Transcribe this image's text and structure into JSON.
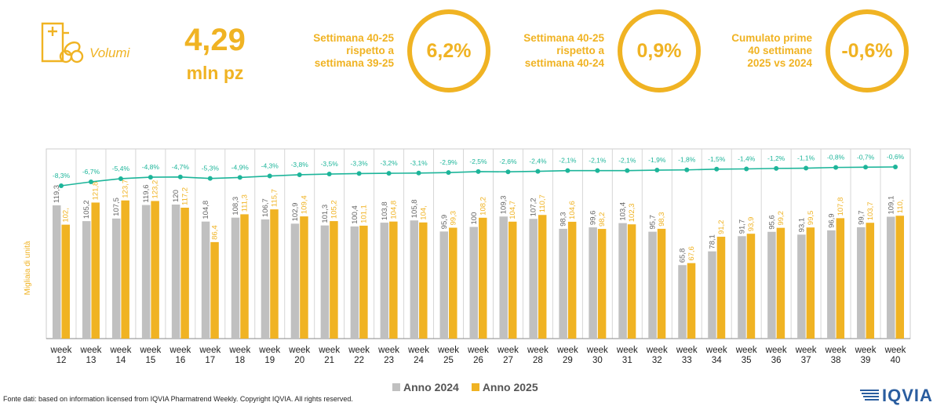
{
  "header": {
    "metric_label": "Volumi",
    "metric_value": "4,29",
    "metric_unit": "mln pz",
    "comparisons": [
      {
        "line1": "Settimana 40-25",
        "line2": "rispetto a",
        "line3": "settimana 39-25",
        "value": "6,2%"
      },
      {
        "line1": "Settimana 40-25",
        "line2": "rispetto a",
        "line3": "settimana 40-24",
        "value": "0,9%"
      },
      {
        "line1": "Cumulato prime",
        "line2": "40 settimane",
        "line3": "2025 vs 2024",
        "value": "-0,6%"
      }
    ]
  },
  "colors": {
    "accent": "#f0b323",
    "bar_2024": "#c0c0c0",
    "bar_2025": "#f0b323",
    "line": "#1db59a"
  },
  "chart_data": {
    "type": "bar",
    "ylabel": "Migliaia di unità",
    "categories": [
      "week 12",
      "week 13",
      "week 14",
      "week 15",
      "week 16",
      "week 17",
      "week 18",
      "week 19",
      "week 20",
      "week 21",
      "week 22",
      "week 23",
      "week 24",
      "week 25",
      "week 26",
      "week 27",
      "week 28",
      "week 29",
      "week 30",
      "week 31",
      "week 32",
      "week 33",
      "week 34",
      "week 35",
      "week 36",
      "week 37",
      "week 38",
      "week 39",
      "week 40"
    ],
    "series": [
      {
        "name": "Anno 2024",
        "values": [
          119.3,
          105.2,
          107.5,
          119.6,
          120,
          104.8,
          108.3,
          106.7,
          102.9,
          101.3,
          100.4,
          103.8,
          105.8,
          95.9,
          100,
          109.3,
          107.2,
          98.3,
          99.6,
          103.4,
          95.7,
          65.8,
          78.1,
          91.7,
          95.6,
          93.1,
          96.9,
          99.7,
          109.1
        ],
        "labels": [
          "119,3",
          "105,2",
          "107,5",
          "119,6",
          "120",
          "104,8",
          "108,3",
          "106,7",
          "102,9",
          "101,3",
          "100,4",
          "103,8",
          "105,8",
          "95,9",
          "100",
          "109,3",
          "107,2",
          "98,3",
          "99,6",
          "103,4",
          "95,7",
          "65,8",
          "78,1",
          "91,7",
          "95,6",
          "93,1",
          "96,9",
          "99,7",
          "109,1"
        ]
      },
      {
        "name": "Anno 2025",
        "values": [
          102,
          121.8,
          123.7,
          123.2,
          117.2,
          86.4,
          111.3,
          115.7,
          109.4,
          105.2,
          101.1,
          104.8,
          104,
          99.3,
          108.2,
          104.7,
          110.7,
          104.6,
          98.2,
          102.3,
          98.3,
          67.6,
          91.2,
          93.9,
          99.2,
          99.5,
          107.8,
          103.7,
          110
        ],
        "labels": [
          "102,",
          "121,8",
          "123,7",
          "123,2",
          "117,2",
          "86,4",
          "111,3",
          "115,7",
          "109,4",
          "105,2",
          "101,1",
          "104,8",
          "104,",
          "99,3",
          "108,2",
          "104,7",
          "110,7",
          "104,6",
          "98,2",
          "102,3",
          "98,3",
          "67,6",
          "91,2",
          "93,9",
          "99,2",
          "99,5",
          "107,8",
          "103,7",
          "110,"
        ]
      }
    ],
    "cumulative_line": {
      "values": [
        -8.3,
        -6.7,
        -5.4,
        -4.8,
        -4.7,
        -5.3,
        -4.9,
        -4.3,
        -3.8,
        -3.5,
        -3.3,
        -3.2,
        -3.1,
        -2.9,
        -2.5,
        -2.6,
        -2.4,
        -2.1,
        -2.1,
        -2.1,
        -1.9,
        -1.8,
        -1.5,
        -1.4,
        -1.2,
        -1.1,
        -0.8,
        -0.7,
        -0.6
      ],
      "labels": [
        "-8,3%",
        "-6,7%",
        "-5,4%",
        "-4,8%",
        "-4,7%",
        "-5,3%",
        "-4,9%",
        "-4,3%",
        "-3,8%",
        "-3,5%",
        "-3,3%",
        "-3,2%",
        "-3,1%",
        "-2,9%",
        "-2,5%",
        "-2,6%",
        "-2,4%",
        "-2,1%",
        "-2,1%",
        "-2,1%",
        "-1,9%",
        "-1,8%",
        "-1,5%",
        "-1,4%",
        "-1,2%",
        "-1,1%",
        "-0,8%",
        "-0,7%",
        "-0,6%"
      ]
    },
    "legend_position": "bottom",
    "grid": false
  },
  "footer": {
    "source": "Fonte dati: based on information licensed from IQVIA Pharmatrend Weekly. Copyright IQVIA. All rights reserved.",
    "brand": "IQVIA"
  }
}
